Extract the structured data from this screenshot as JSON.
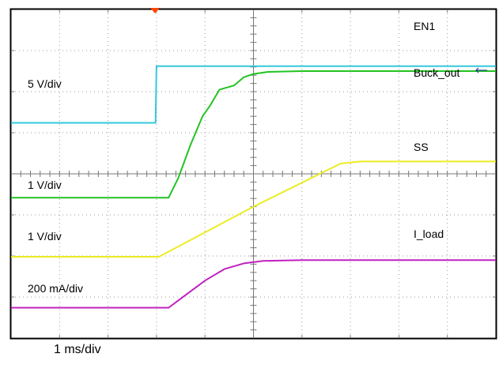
{
  "chart_data": {
    "type": "line",
    "title": "",
    "xlabel": "",
    "ylabel": "",
    "timebase": "1 ms/div",
    "x_divisions": 10,
    "y_divisions": 8,
    "grid": true,
    "trigger_marker_color": "#ff4500",
    "labels": {
      "en1": "EN1",
      "buck_out": "Buck_out",
      "ss": "SS",
      "i_load": "I_load",
      "scale_5v": "5 V/div",
      "scale_1v_a": "1 V/div",
      "scale_1v_b": "1 V/div",
      "scale_200ma": "200 mA/div"
    },
    "series": [
      {
        "name": "EN1",
        "color": "#33c8dc",
        "points": [
          [
            0,
            5.24
          ],
          [
            2.98,
            5.24
          ],
          [
            3.0,
            6.62
          ],
          [
            10,
            6.62
          ]
        ]
      },
      {
        "name": "Buck_out",
        "color": "#22c322",
        "points": [
          [
            0,
            3.42
          ],
          [
            3.25,
            3.42
          ],
          [
            3.45,
            3.9
          ],
          [
            3.7,
            4.7
          ],
          [
            3.95,
            5.4
          ],
          [
            4.1,
            5.65
          ],
          [
            4.3,
            6.05
          ],
          [
            4.6,
            6.15
          ],
          [
            4.8,
            6.35
          ],
          [
            5.0,
            6.43
          ],
          [
            5.3,
            6.48
          ],
          [
            6.0,
            6.5
          ],
          [
            10,
            6.5
          ]
        ]
      },
      {
        "name": "SS",
        "color": "#ecec24",
        "points": [
          [
            0,
            1.98
          ],
          [
            3.05,
            1.98
          ],
          [
            5.0,
            3.2
          ],
          [
            6.8,
            4.25
          ],
          [
            7.2,
            4.3
          ],
          [
            10,
            4.3
          ]
        ]
      },
      {
        "name": "I_load",
        "color": "#c020c0",
        "points": [
          [
            0,
            0.74
          ],
          [
            3.25,
            0.74
          ],
          [
            3.6,
            1.05
          ],
          [
            4.0,
            1.4
          ],
          [
            4.4,
            1.68
          ],
          [
            4.8,
            1.82
          ],
          [
            5.2,
            1.88
          ],
          [
            6.0,
            1.9
          ],
          [
            10,
            1.9
          ]
        ]
      }
    ]
  }
}
